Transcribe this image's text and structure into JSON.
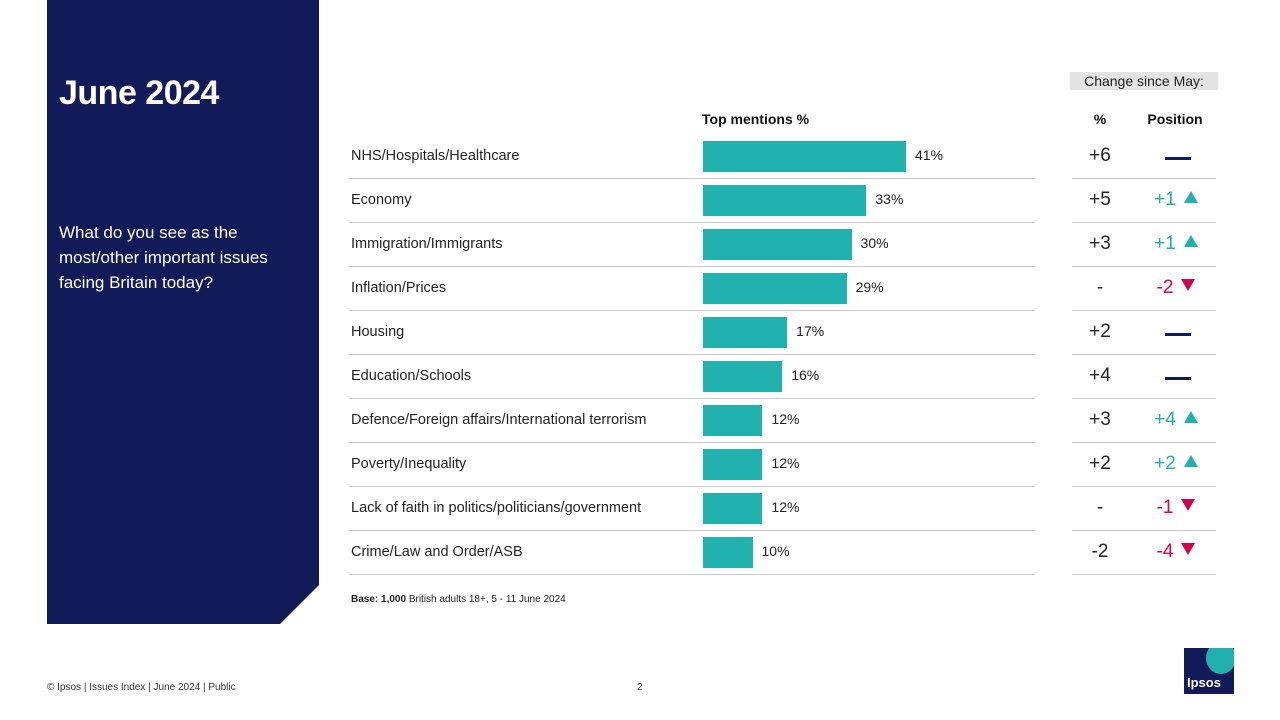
{
  "panel": {
    "title": "June 2024",
    "question": "What do you see as the most/other important issues facing Britain today?"
  },
  "headers": {
    "top_mentions": "Top mentions %",
    "change_since": "Change since May:",
    "pct": "%",
    "position": "Position"
  },
  "chart_data": {
    "type": "bar",
    "orientation": "horizontal",
    "xlabel": "Top mentions %",
    "categories": [
      "NHS/Hospitals/Healthcare",
      "Economy",
      "Immigration/Immigrants",
      "Inflation/Prices",
      "Housing",
      "Education/Schools",
      "Defence/Foreign affairs/International terrorism",
      "Poverty/Inequality",
      "Lack of faith in politics/politicians/government",
      "Crime/Law and Order/ASB"
    ],
    "values": [
      41,
      33,
      30,
      29,
      17,
      16,
      12,
      12,
      12,
      10
    ],
    "value_labels": [
      "41%",
      "33%",
      "30%",
      "29%",
      "17%",
      "16%",
      "12%",
      "12%",
      "12%",
      "10%"
    ],
    "bar_color": "#20b0ad"
  },
  "changes": [
    {
      "pct": "+6",
      "position": "",
      "dir": "same"
    },
    {
      "pct": "+5",
      "position": "+1",
      "dir": "up"
    },
    {
      "pct": "+3",
      "position": "+1",
      "dir": "up"
    },
    {
      "pct": "-",
      "position": "-2",
      "dir": "down"
    },
    {
      "pct": "+2",
      "position": "",
      "dir": "same"
    },
    {
      "pct": "+4",
      "position": "",
      "dir": "same"
    },
    {
      "pct": "+3",
      "position": "+4",
      "dir": "up"
    },
    {
      "pct": "+2",
      "position": "+2",
      "dir": "up"
    },
    {
      "pct": "-",
      "position": "-1",
      "dir": "down"
    },
    {
      "pct": "-2",
      "position": "-4",
      "dir": "down"
    }
  ],
  "base": {
    "label": "Base: 1,000",
    "text": " British adults 18+, 5 - 11 June 2024"
  },
  "footer": {
    "left": "© Ipsos | Issues Index | June 2024 | Public",
    "page": "2"
  },
  "logo": {
    "text": "Ipsos"
  },
  "colors": {
    "navy": "#121a57",
    "teal": "#20b0ad",
    "red": "#d3004c"
  }
}
